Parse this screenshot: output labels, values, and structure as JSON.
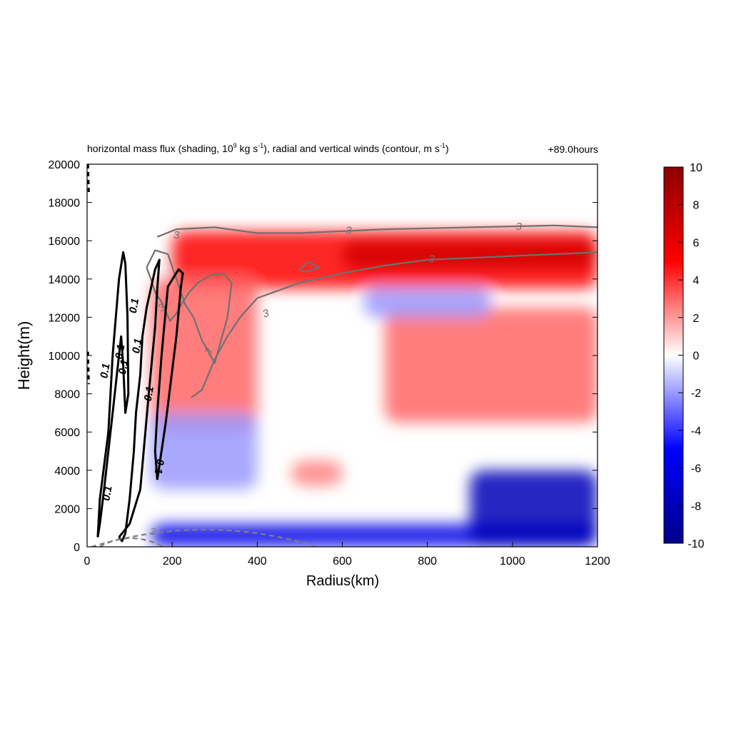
{
  "title": {
    "part1": "horizontal mass flux (shading, 10",
    "sup1": "9",
    "part2": " kg s",
    "sup2": "-1",
    "part3": "), radial and vertical winds (contour, m s",
    "sup3": "-1",
    "part4": ")",
    "time": "+89.0hours"
  },
  "chart_data": {
    "type": "heatmap",
    "xlabel": "Radius(km)",
    "ylabel": "Height(m)",
    "xlim": [
      0,
      1200
    ],
    "ylim": [
      0,
      20000
    ],
    "xticks": [
      "0",
      "200",
      "400",
      "600",
      "800",
      "1000",
      "1200"
    ],
    "yticks": [
      "0",
      "2000",
      "4000",
      "6000",
      "8000",
      "10000",
      "12000",
      "14000",
      "16000",
      "18000",
      "20000"
    ],
    "colorbar": {
      "range": [
        -10,
        10
      ],
      "ticks": [
        "10",
        "8",
        "6",
        "4",
        "2",
        "0",
        "-2",
        "-4",
        "-6",
        "-8",
        "-10"
      ],
      "colors": [
        "#00008b",
        "#0000ff",
        "#ffffff",
        "#ff0000",
        "#8b0000"
      ]
    },
    "shading_features": [
      {
        "name": "upper outflow",
        "r": [
          200,
          1200
        ],
        "z": [
          13500,
          16500
        ],
        "value": 5
      },
      {
        "name": "outflow core",
        "r": [
          600,
          1200
        ],
        "z": [
          14500,
          16000
        ],
        "value": 7
      },
      {
        "name": "mid-level positive",
        "r": [
          700,
          1200
        ],
        "z": [
          6500,
          12500
        ],
        "value": 3
      },
      {
        "name": "eyewall slant",
        "r": [
          150,
          400
        ],
        "z": [
          6000,
          14000
        ],
        "value": 3
      },
      {
        "name": "upper negative",
        "r": [
          650,
          950
        ],
        "z": [
          12000,
          13500
        ],
        "value": -2
      },
      {
        "name": "mid negative slant",
        "r": [
          150,
          400
        ],
        "z": [
          3000,
          7000
        ],
        "value": -2
      },
      {
        "name": "mid positive blob",
        "r": [
          480,
          600
        ],
        "z": [
          3200,
          4500
        ],
        "value": 2.5
      },
      {
        "name": "boundary-layer inflow",
        "r": [
          150,
          1200
        ],
        "z": [
          0,
          1200
        ],
        "value": -6
      },
      {
        "name": "lower inflow deep",
        "r": [
          900,
          1200
        ],
        "z": [
          0,
          4000
        ],
        "value": -8
      }
    ],
    "contour_labels": {
      "radial": [
        "3",
        "3",
        "3",
        "3",
        "3",
        "3",
        "3"
      ],
      "vertical": [
        "0.1",
        "0.1",
        "0.1",
        "0.1",
        "0.1",
        "0.1",
        "0.1",
        "0.1"
      ],
      "surface": [
        "3"
      ]
    },
    "contours": {
      "radial_outflow_upper": {
        "r": [
          165,
          210,
          300,
          400,
          500,
          600,
          700,
          800,
          900,
          1000,
          1100,
          1200
        ],
        "z": [
          16200,
          16600,
          16700,
          16400,
          16400,
          16500,
          16600,
          16650,
          16700,
          16750,
          16800,
          16700
        ]
      },
      "radial_outflow_lower": {
        "r": [
          245,
          270,
          300,
          330,
          360,
          400,
          500,
          600,
          700,
          800,
          900,
          1000,
          1100,
          1200
        ],
        "z": [
          7800,
          8200,
          9800,
          11000,
          12000,
          13000,
          13800,
          14300,
          14700,
          15000,
          15100,
          15200,
          15300,
          15400
        ]
      },
      "radial_inner_loop": {
        "r": [
          140,
          160,
          190,
          210,
          230,
          250,
          270,
          300,
          330,
          340,
          320,
          290,
          260,
          240,
          225,
          210,
          195,
          175,
          160,
          150,
          140
        ],
        "z": [
          14600,
          15500,
          15300,
          14000,
          12700,
          12000,
          10800,
          9600,
          12000,
          13800,
          14300,
          14200,
          13800,
          13300,
          12800,
          12200,
          11800,
          12800,
          13300,
          14000,
          14600
        ]
      },
      "radial_small_loop": {
        "r": [
          500,
          520,
          545,
          520,
          505,
          500
        ],
        "z": [
          14500,
          14900,
          14600,
          14400,
          14400,
          14500
        ]
      },
      "vertical_outer": {
        "r": [
          25,
          30,
          50,
          60,
          75,
          85,
          90,
          95,
          97,
          90,
          85,
          80,
          70,
          60,
          50,
          40,
          30,
          25
        ],
        "z": [
          500,
          2500,
          6000,
          10000,
          14000,
          15400,
          14800,
          12000,
          8000,
          7000,
          9500,
          11000,
          9000,
          7000,
          5000,
          3000,
          1200,
          500
        ]
      },
      "vertical_mid": {
        "r": [
          75,
          100,
          125,
          145,
          160,
          165,
          170,
          160,
          140,
          130,
          125,
          115,
          110,
          100,
          90,
          82,
          75
        ],
        "z": [
          500,
          1200,
          3000,
          8000,
          11500,
          13500,
          15000,
          14500,
          12500,
          11000,
          9000,
          7000,
          5000,
          2500,
          700,
          300,
          500
        ]
      },
      "vertical_right": {
        "r": [
          165,
          185,
          210,
          220,
          225,
          215,
          190,
          175,
          165,
          160,
          165
        ],
        "z": [
          3500,
          6500,
          11000,
          13500,
          14300,
          14500,
          13600,
          10000,
          7000,
          5000,
          3500
        ]
      }
    }
  }
}
